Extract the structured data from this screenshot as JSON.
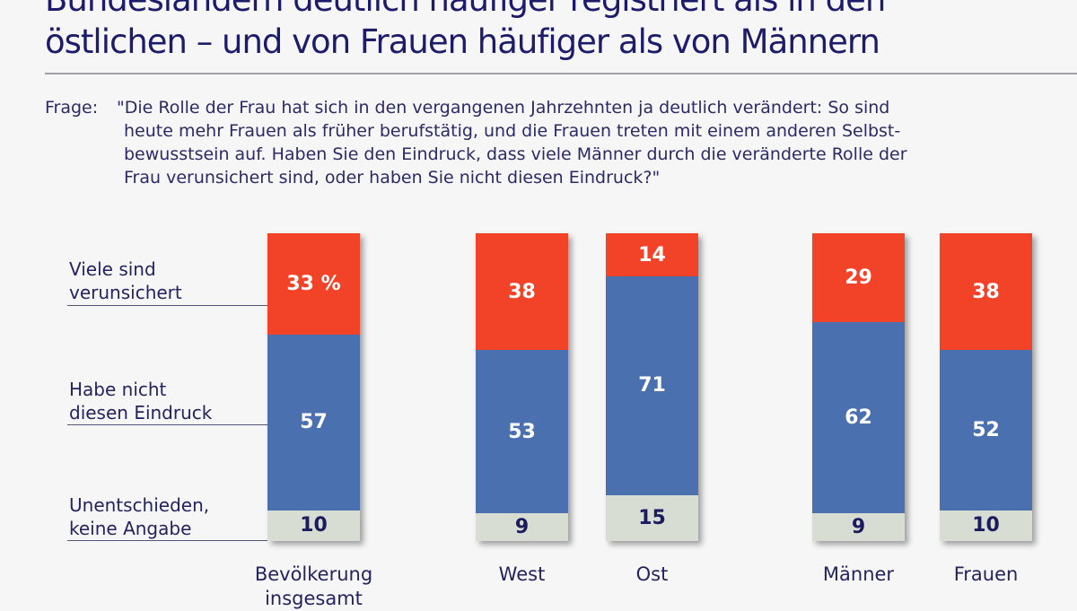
{
  "title": {
    "line1": "Bundesländern deutlich häufiger registriert als in den",
    "line2": "östlichen – und von Frauen häufiger als von Männern"
  },
  "question": {
    "label": "Frage:",
    "lines": [
      "\"Die Rolle der Frau hat sich in den vergangenen Jahrzehnten ja deutlich verändert: So sind",
      "heute mehr Frauen als früher berufstätig, und die Frauen treten mit einem anderen Selbst-",
      "bewusstsein auf. Haben Sie den Eindruck, dass viele Männer durch die veränderte Rolle der",
      "Frau verunsichert sind, oder haben Sie nicht diesen Eindruck?\""
    ]
  },
  "chart_data": {
    "type": "bar",
    "stacked": true,
    "orientation": "vertical",
    "unit": "%",
    "categories": [
      "Bevölkerung insgesamt",
      "West",
      "Ost",
      "Männer",
      "Frauen"
    ],
    "series": [
      {
        "name": "Viele sind verunsichert",
        "color": "#f24328",
        "values": [
          33,
          38,
          14,
          29,
          38
        ]
      },
      {
        "name": "Habe nicht diesen Eindruck",
        "color": "#4a70b0",
        "values": [
          57,
          53,
          71,
          62,
          52
        ]
      },
      {
        "name": "Unentschieden, keine Angabe",
        "color": "#d8ddd4",
        "values": [
          10,
          9,
          15,
          9,
          10
        ]
      }
    ],
    "legend": {
      "placement": "left",
      "labels": [
        [
          "Viele sind",
          "verunsichert"
        ],
        [
          "Habe nicht",
          "diesen Eindruck"
        ],
        [
          "Unentschieden,",
          "keine Angabe"
        ]
      ]
    },
    "category_labels": [
      [
        "Bevölkerung",
        "insgesamt"
      ],
      [
        "West"
      ],
      [
        "Ost"
      ],
      [
        "Männer"
      ],
      [
        "Frauen"
      ]
    ],
    "text_colors": [
      "#ffffff",
      "#ffffff",
      "#1b1b5e"
    ]
  }
}
